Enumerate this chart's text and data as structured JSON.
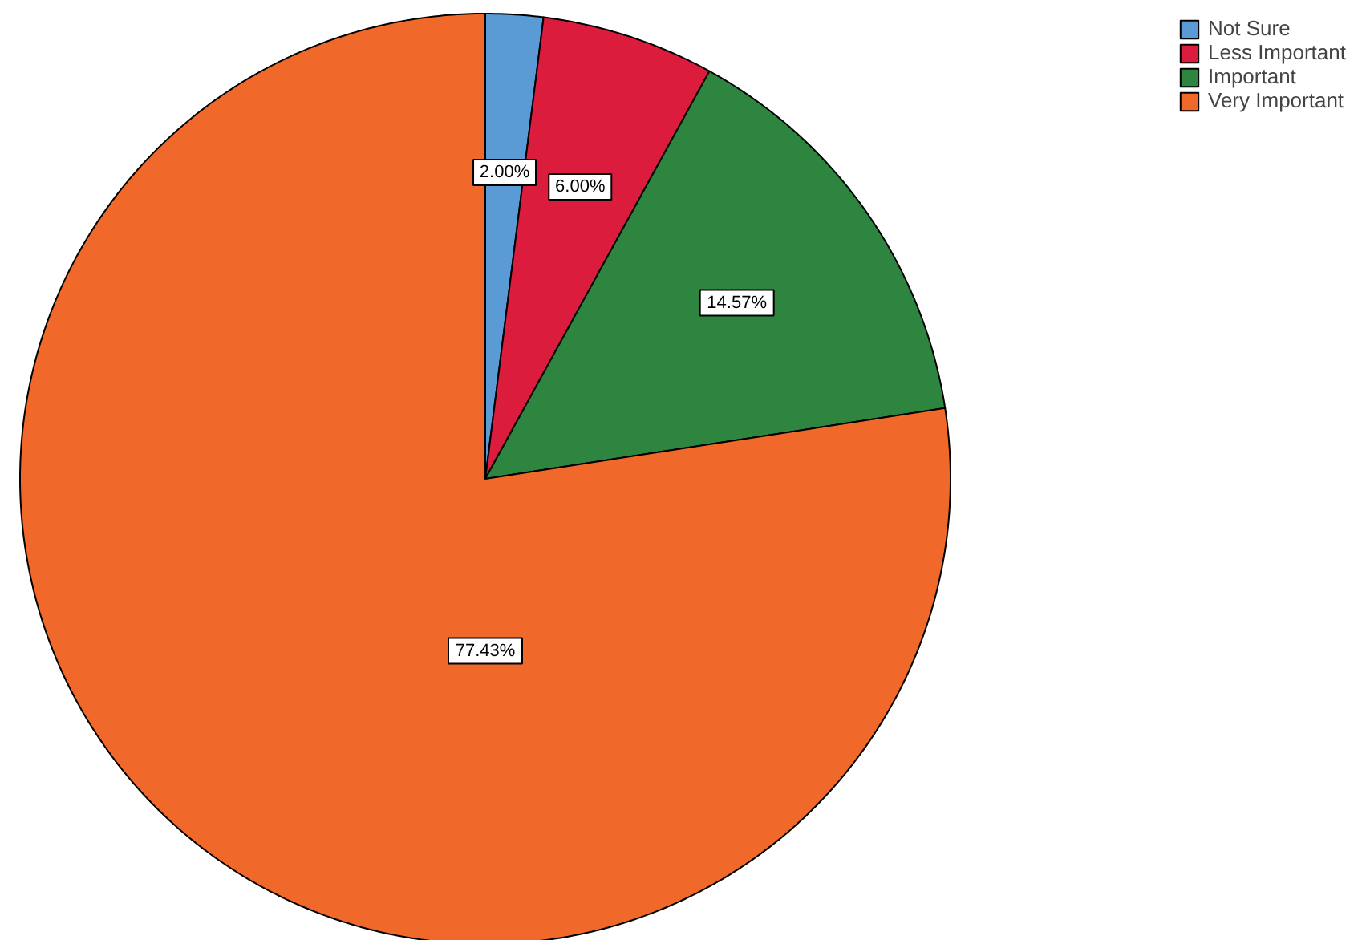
{
  "chart_data": {
    "type": "pie",
    "categories": [
      "Not Sure",
      "Less Important",
      "Important",
      "Very Important"
    ],
    "values": [
      2.0,
      6.0,
      14.57,
      77.43
    ],
    "colors": [
      "#5b9bd5",
      "#dc1c3c",
      "#2e8540",
      "#f0682a"
    ],
    "value_labels": [
      "2.00%",
      "6.00%",
      "14.57%",
      "77.43%"
    ],
    "legend": "top right"
  }
}
